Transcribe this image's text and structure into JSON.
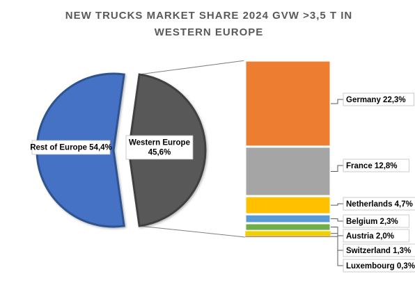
{
  "chart_data": {
    "type": "pie",
    "subtype": "pie-of-bar",
    "title": "NEW TRUCKS MARKET SHARE 2024 GVW >3,5 T IN WESTERN EUROPE",
    "title_lines": [
      "NEW TRUCKS MARKET SHARE 2024 GVW >3,5 T IN",
      "WESTERN EUROPE"
    ],
    "unit": "%",
    "pie": {
      "slices": [
        {
          "label": "Rest of Europe 54,4%",
          "value": 54.4,
          "color": "#4472c4"
        },
        {
          "label_lines": [
            "Western Europe",
            "45,6%"
          ],
          "value": 45.6,
          "color": "#595959"
        }
      ]
    },
    "bar": {
      "segments": [
        {
          "label": "Germany 22,3%",
          "value": 22.3,
          "color": "#ed7d31"
        },
        {
          "label": "France 12,8%",
          "value": 12.8,
          "color": "#a5a5a5"
        },
        {
          "label": "Netherlands 4,7%",
          "value": 4.7,
          "color": "#ffc000"
        },
        {
          "label": "Belgium 2,3%",
          "value": 2.3,
          "color": "#5b9bd5"
        },
        {
          "label": "Austria 2,0%",
          "value": 2.0,
          "color": "#70ad47"
        },
        {
          "label": "Switzerland 1,3%",
          "value": 1.3,
          "color": "#f0d000"
        },
        {
          "label": "Luxembourg 0,3%",
          "value": 0.3,
          "color": "#9e480e"
        }
      ]
    },
    "legend": "none",
    "grid": false
  }
}
